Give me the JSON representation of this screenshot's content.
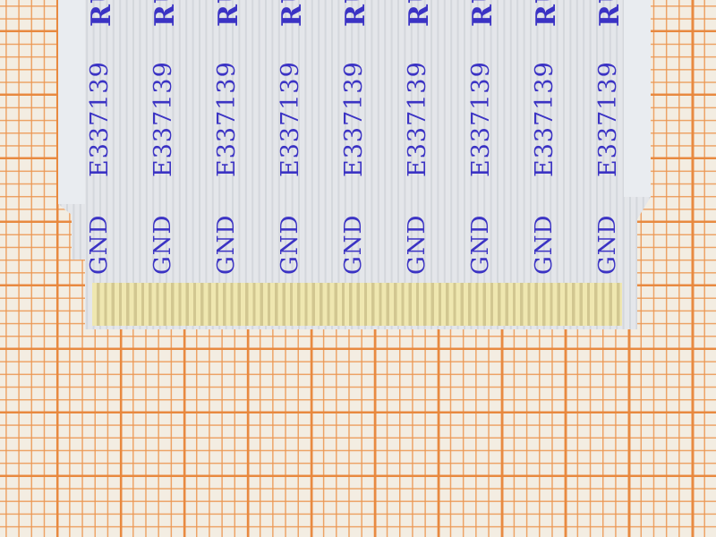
{
  "scene": {
    "subject": "flat flex cable on grid paper",
    "background_color": "#f3ede2",
    "grid_color": "#e8873c",
    "text_color": "#3b33c4"
  },
  "cable": {
    "logo_marks": [
      "RU",
      "RU",
      "RU",
      "RU",
      "RU",
      "RU",
      "RU",
      "RU",
      "RU"
    ],
    "part_numbers": [
      "E337139",
      "E337139",
      "E337139",
      "E337139",
      "E337139",
      "E337139",
      "E337139",
      "E337139",
      "E337139"
    ],
    "gnd_labels": [
      "GND",
      "GND",
      "GND",
      "GND",
      "GND",
      "GND",
      "GND",
      "GND",
      "GND"
    ]
  }
}
